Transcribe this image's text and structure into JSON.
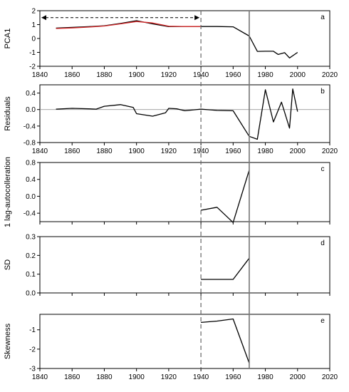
{
  "chart_data": [
    {
      "panel_label": "a",
      "type": "line",
      "ylabel": "PCA1",
      "xlim": [
        1840,
        2020
      ],
      "ylim": [
        -2,
        2
      ],
      "yticks": [
        "-2",
        "-1",
        "0",
        "1",
        "2"
      ],
      "xticks": [
        "1840",
        "1860",
        "1880",
        "1900",
        "1920",
        "1940",
        "1960",
        "1980",
        "2000",
        "2020"
      ],
      "arrow": {
        "x_start": 1840,
        "x_end": 1940,
        "y": 1.5
      },
      "series": [
        {
          "color": "#000000",
          "x": [
            1850,
            1860,
            1870,
            1880,
            1890,
            1900,
            1910,
            1920,
            1930,
            1940,
            1950,
            1960,
            1970,
            1975,
            1980,
            1985,
            1988,
            1992,
            1995,
            2000
          ],
          "y": [
            0.75,
            0.8,
            0.85,
            0.92,
            1.08,
            1.28,
            1.05,
            0.85,
            0.86,
            0.86,
            0.86,
            0.84,
            0.18,
            -0.93,
            -0.92,
            -0.92,
            -1.15,
            -1.02,
            -1.4,
            -1.0
          ]
        },
        {
          "color": "#d62728",
          "x": [
            1850,
            1860,
            1870,
            1880,
            1890,
            1900,
            1910,
            1920,
            1930,
            1940
          ],
          "y": [
            0.72,
            0.76,
            0.82,
            0.9,
            1.05,
            1.22,
            1.12,
            0.88,
            0.86,
            0.86
          ]
        }
      ]
    },
    {
      "panel_label": "b",
      "type": "line",
      "ylabel": "Residuals",
      "xlim": [
        1840,
        2020
      ],
      "ylim": [
        -0.8,
        0.6
      ],
      "yticks": [
        "-0.8",
        "-0.4",
        "0.0",
        "0.4"
      ],
      "xticks": [
        "1840",
        "1860",
        "1880",
        "1900",
        "1920",
        "1940",
        "1960",
        "1980",
        "2000",
        "2020"
      ],
      "zero_line": 0,
      "series": [
        {
          "color": "#000000",
          "x": [
            1850,
            1860,
            1870,
            1875,
            1880,
            1890,
            1898,
            1900,
            1910,
            1918,
            1920,
            1925,
            1930,
            1940,
            1950,
            1960,
            1970,
            1975,
            1980,
            1985,
            1990,
            1992,
            1995,
            1997,
            2000
          ],
          "y": [
            0.01,
            0.03,
            0.02,
            0.01,
            0.08,
            0.12,
            0.05,
            -0.1,
            -0.16,
            -0.08,
            0.03,
            0.02,
            -0.03,
            0.01,
            -0.02,
            -0.03,
            -0.65,
            -0.72,
            0.48,
            -0.3,
            0.18,
            -0.07,
            -0.45,
            0.5,
            -0.05
          ]
        }
      ]
    },
    {
      "panel_label": "c",
      "type": "line",
      "ylabel": "1 lag-autocolleration",
      "xlim": [
        1840,
        2020
      ],
      "ylim": [
        -0.6,
        0.8
      ],
      "yticks": [
        "-0.4",
        "0.0",
        "0.4",
        "0.8"
      ],
      "series": [
        {
          "color": "#000000",
          "x": [
            1940,
            1950,
            1960,
            1970
          ],
          "y": [
            -0.33,
            -0.26,
            -0.62,
            0.62
          ]
        }
      ]
    },
    {
      "panel_label": "d",
      "type": "line",
      "ylabel": "SD",
      "xlim": [
        1840,
        2020
      ],
      "ylim": [
        0,
        0.3
      ],
      "yticks": [
        "0.0",
        "0.1",
        "0.2",
        "0.3"
      ],
      "series": [
        {
          "color": "#000000",
          "x": [
            1940,
            1950,
            1960,
            1970
          ],
          "y": [
            0.072,
            0.072,
            0.072,
            0.185
          ]
        }
      ]
    },
    {
      "panel_label": "e",
      "type": "line",
      "ylabel": "Skewness",
      "xlim": [
        1840,
        2020
      ],
      "ylim": [
        -3,
        -0.2
      ],
      "yticks": [
        "-1",
        "-2",
        "-3"
      ],
      "xticks": [
        "1840",
        "1860",
        "1880",
        "1900",
        "1920",
        "1940",
        "1960",
        "1980",
        "2000",
        "2020"
      ],
      "series": [
        {
          "color": "#000000",
          "x": [
            1940,
            1950,
            1960,
            1970
          ],
          "y": [
            -0.62,
            -0.55,
            -0.44,
            -2.72
          ]
        }
      ]
    }
  ],
  "reference_lines": {
    "dashed_x": 1940,
    "solid_x": 1970
  }
}
